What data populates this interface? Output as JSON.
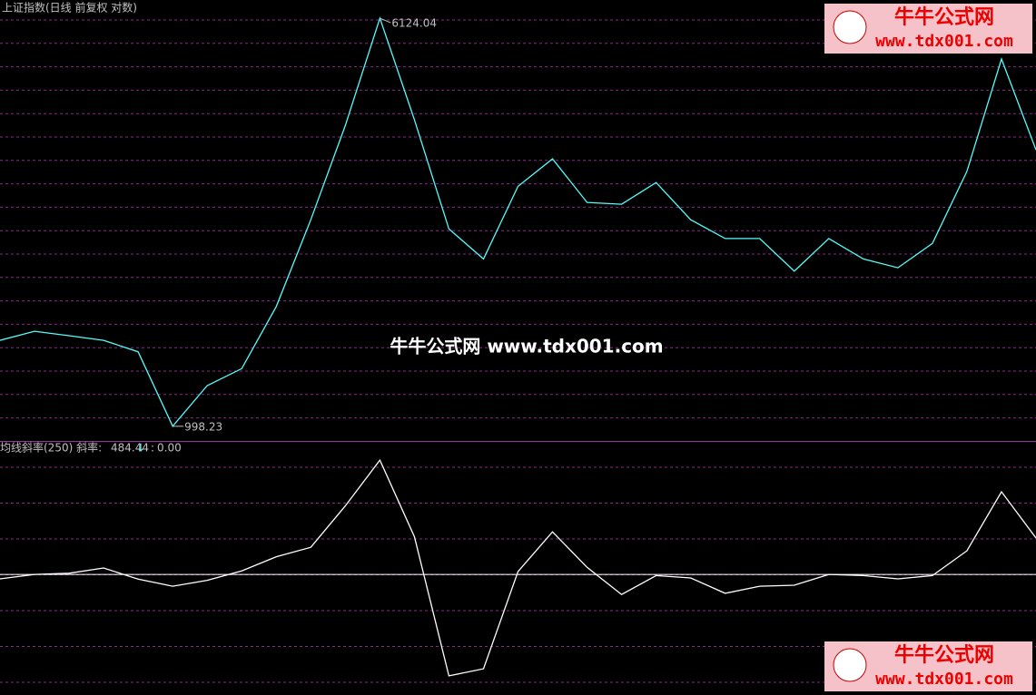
{
  "chart_data": [
    {
      "type": "line",
      "title": "上证指数(日线 前复权 对数)",
      "log": true,
      "ylim": [
        939,
        6640
      ],
      "categories": [
        null,
        null,
        null,
        null,
        null,
        null,
        null,
        null,
        null,
        null,
        null,
        null,
        null,
        null,
        null,
        null,
        null,
        null,
        null,
        null,
        null,
        null,
        null,
        null,
        null,
        null,
        null,
        null,
        null,
        null,
        null
      ],
      "series": [
        {
          "name": "上证指数",
          "color": "#54fcfc",
          "values": [
            1463,
            1523,
            1493,
            1463,
            1390,
            998.23,
            1196,
            1290,
            1700,
            2500,
            3800,
            6124.04,
            3900,
            2400,
            2100,
            2900,
            3277,
            2700,
            2678,
            2950,
            2500,
            2300,
            2300,
            1990,
            2300,
            2100,
            2020,
            2250,
            3100,
            5109,
            3411
          ]
        }
      ]
    },
    {
      "type": "line",
      "title": "均线斜率(250) 斜率:",
      "indicator_arrow": "↓",
      "ylim": [
        -511,
        550
      ],
      "reference_line": {
        "value": 0,
        "label": "0.00"
      },
      "categories": [
        null,
        null,
        null,
        null,
        null,
        null,
        null,
        null,
        null,
        null,
        null,
        null,
        null,
        null,
        null,
        null,
        null,
        null,
        null,
        null,
        null,
        null,
        null,
        null,
        null,
        null,
        null,
        null,
        null,
        null,
        null
      ],
      "series": [
        {
          "name": "斜率",
          "color": "#ffffff",
          "values": [
            -19,
            0,
            5,
            27,
            -20,
            -50,
            -25,
            15,
            75,
            115,
            290,
            484.44,
            160,
            -430,
            -400,
            12,
            180,
            30,
            -85,
            -5,
            -15,
            -80,
            -50,
            -46,
            0,
            -5,
            -19,
            -5,
            100,
            350,
            154
          ]
        }
      ]
    }
  ],
  "watermark": {
    "center": "牛牛公式网 www.tdx001.com",
    "logo_title": "牛牛公式网",
    "logo_url": "www.tdx001.com"
  }
}
